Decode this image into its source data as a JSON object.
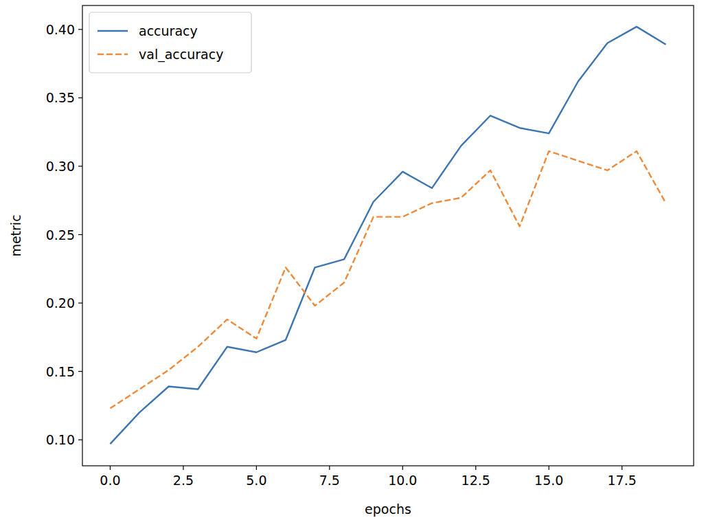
{
  "chart_data": {
    "type": "line",
    "x_label": "epochs",
    "y_label": "metric",
    "x": [
      0,
      1,
      2,
      3,
      4,
      5,
      6,
      7,
      8,
      9,
      10,
      11,
      12,
      13,
      14,
      15,
      16,
      17,
      18,
      19
    ],
    "series": [
      {
        "name": "accuracy",
        "color": "#3d75b0",
        "line_style": "solid",
        "values": [
          0.097,
          0.12,
          0.139,
          0.137,
          0.168,
          0.164,
          0.173,
          0.226,
          0.232,
          0.274,
          0.296,
          0.284,
          0.315,
          0.337,
          0.328,
          0.324,
          0.362,
          0.39,
          0.402,
          0.389
        ]
      },
      {
        "name": "val_accuracy",
        "color": "#ef8a3a",
        "line_style": "dashed",
        "values": [
          0.123,
          0.137,
          0.151,
          0.168,
          0.188,
          0.174,
          0.226,
          0.198,
          0.215,
          0.263,
          0.263,
          0.273,
          0.277,
          0.297,
          0.256,
          0.311,
          0.304,
          0.297,
          0.311,
          0.273
        ]
      }
    ],
    "xlim": [
      -0.95,
      19.95
    ],
    "ylim": [
      0.081,
      0.4175
    ],
    "xticks": [
      {
        "value": 0,
        "label": "0.0"
      },
      {
        "value": 2.5,
        "label": "2.5"
      },
      {
        "value": 5,
        "label": "5.0"
      },
      {
        "value": 7.5,
        "label": "7.5"
      },
      {
        "value": 10,
        "label": "10.0"
      },
      {
        "value": 12.5,
        "label": "12.5"
      },
      {
        "value": 15,
        "label": "15.0"
      },
      {
        "value": 17.5,
        "label": "17.5"
      }
    ],
    "yticks": [
      {
        "value": 0.1,
        "label": "0.10"
      },
      0.15,
      {
        "value": 0.2,
        "label": "0.20"
      },
      0.25,
      {
        "value": 0.3,
        "label": "0.30"
      },
      0.35,
      {
        "value": 0.4,
        "label": "0.40"
      }
    ],
    "legend": "upper left",
    "grid": false
  }
}
